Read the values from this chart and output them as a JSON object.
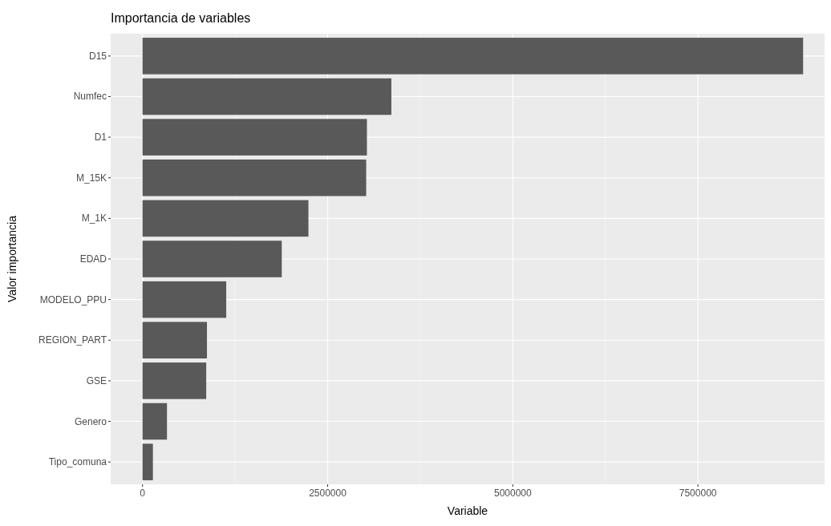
{
  "chart_data": {
    "type": "bar",
    "orientation": "horizontal",
    "title": "Importancia de variables",
    "xlabel": "Variable",
    "ylabel": "Valor importancia",
    "categories": [
      "D15",
      "Numfec",
      "D1",
      "M_15K",
      "M_1K",
      "EDAD",
      "MODELO_PPU",
      "REGION_PART",
      "GSE",
      "Genero",
      "Tipo_comuna"
    ],
    "values": [
      8920000,
      3360000,
      3030000,
      3020000,
      2240000,
      1880000,
      1130000,
      870000,
      860000,
      330000,
      140000
    ],
    "color": "#595959",
    "xlim": [
      -430000,
      9210000
    ],
    "xticks": [
      0,
      2500000,
      5000000,
      7500000
    ],
    "grid": true
  }
}
